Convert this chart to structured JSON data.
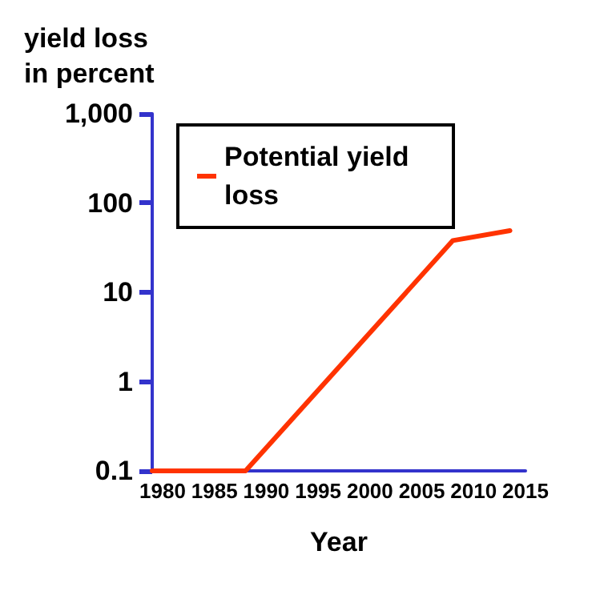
{
  "chart_data": {
    "type": "line",
    "xlabel": "Year",
    "ylabel": "yield loss in percent",
    "x": [
      1979,
      1988,
      2008,
      2013.5
    ],
    "series": [
      {
        "name": "Potential yield loss",
        "color": "#ff3300",
        "values": [
          0.1,
          0.1,
          38,
          49
        ]
      }
    ],
    "xlim": [
      1979,
      2015
    ],
    "xticks": [
      1980,
      1985,
      1990,
      1995,
      2000,
      2005,
      2010,
      2015
    ],
    "ylim": [
      0.1,
      1000
    ],
    "yticks": [
      0.1,
      1,
      10,
      100,
      {
        "value": 1000,
        "label": "1,000"
      }
    ],
    "log": "y",
    "grid": false,
    "legend": "top",
    "marker": "none",
    "line_style": "solid"
  }
}
